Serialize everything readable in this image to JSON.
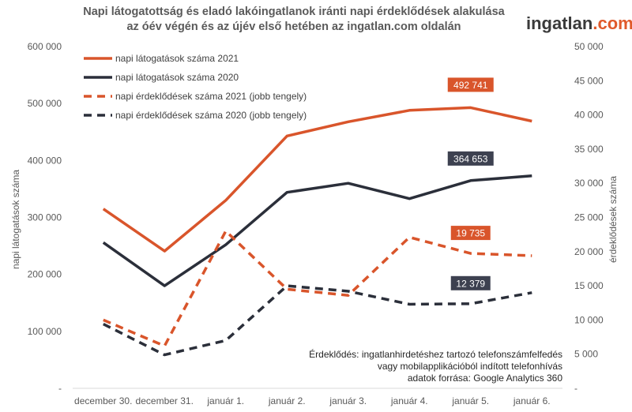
{
  "header": {
    "title_line1": "Napi látogatottság és eladó lakóingatlanok iránti napi érdeklődések alakulása",
    "title_line2": "az óév végén és az újév első hetében az ingatlan.com oldalán"
  },
  "logo": {
    "part1": "ingatlan",
    "part2": ".com",
    "color1": "#3a3a3a",
    "color2": "#e05a2b"
  },
  "notes": [
    "Érdeklődés: ingatlanhirdetéshez tartozó telefonszámfelfedés",
    "vagy mobilapplikációból indított telefonhívás",
    "adatok forrása: Google Analytics 360"
  ],
  "chart_data": {
    "type": "line",
    "categories": [
      "december 30.",
      "december 31.",
      "január 1.",
      "január 2.",
      "január 3.",
      "január 4.",
      "január 5.",
      "január 6."
    ],
    "ylabel": "napi látogatások száma",
    "y2label": "érdeklődések száma",
    "ylim": [
      0,
      600000
    ],
    "y2lim": [
      0,
      50000
    ],
    "y_ticks": [
      "-",
      "100 000",
      "200 000",
      "300 000",
      "400 000",
      "500 000",
      "600 000"
    ],
    "y2_ticks": [
      "-",
      "5 000",
      "10 000",
      "15 000",
      "20 000",
      "25 000",
      "30 000",
      "35 000",
      "40 000",
      "45 000",
      "50 000"
    ],
    "grid": false,
    "legend_position": "top-left",
    "series": [
      {
        "name": "napi látogatások száma 2021",
        "axis": "left",
        "style": "solid",
        "color": "#d9552b",
        "values": [
          315000,
          241000,
          330000,
          443000,
          468000,
          488000,
          492741,
          469000
        ]
      },
      {
        "name": "napi látogatások száma 2020",
        "axis": "left",
        "style": "solid",
        "color": "#2b2f3a",
        "values": [
          256000,
          180000,
          252000,
          344000,
          360000,
          333000,
          364653,
          373000
        ]
      },
      {
        "name": "napi érdeklődések száma 2021 (jobb tengely)",
        "axis": "right",
        "style": "dashed",
        "color": "#d9552b",
        "values": [
          10000,
          6200,
          23000,
          14500,
          13600,
          22100,
          19735,
          19400
        ]
      },
      {
        "name": "napi érdeklődések száma 2020 (jobb tengely)",
        "axis": "right",
        "style": "dashed",
        "color": "#2b2f3a",
        "values": [
          9400,
          4900,
          7000,
          15000,
          14200,
          12300,
          12379,
          14000
        ]
      }
    ],
    "labels": [
      {
        "text": "492 741",
        "series": 0,
        "index": 6,
        "color": "#d9552b"
      },
      {
        "text": "364 653",
        "series": 1,
        "index": 6,
        "color": "#3d4150"
      },
      {
        "text": "19 735",
        "series": 2,
        "index": 6,
        "color": "#d9552b"
      },
      {
        "text": "12 379",
        "series": 3,
        "index": 6,
        "color": "#3d4150"
      }
    ]
  }
}
